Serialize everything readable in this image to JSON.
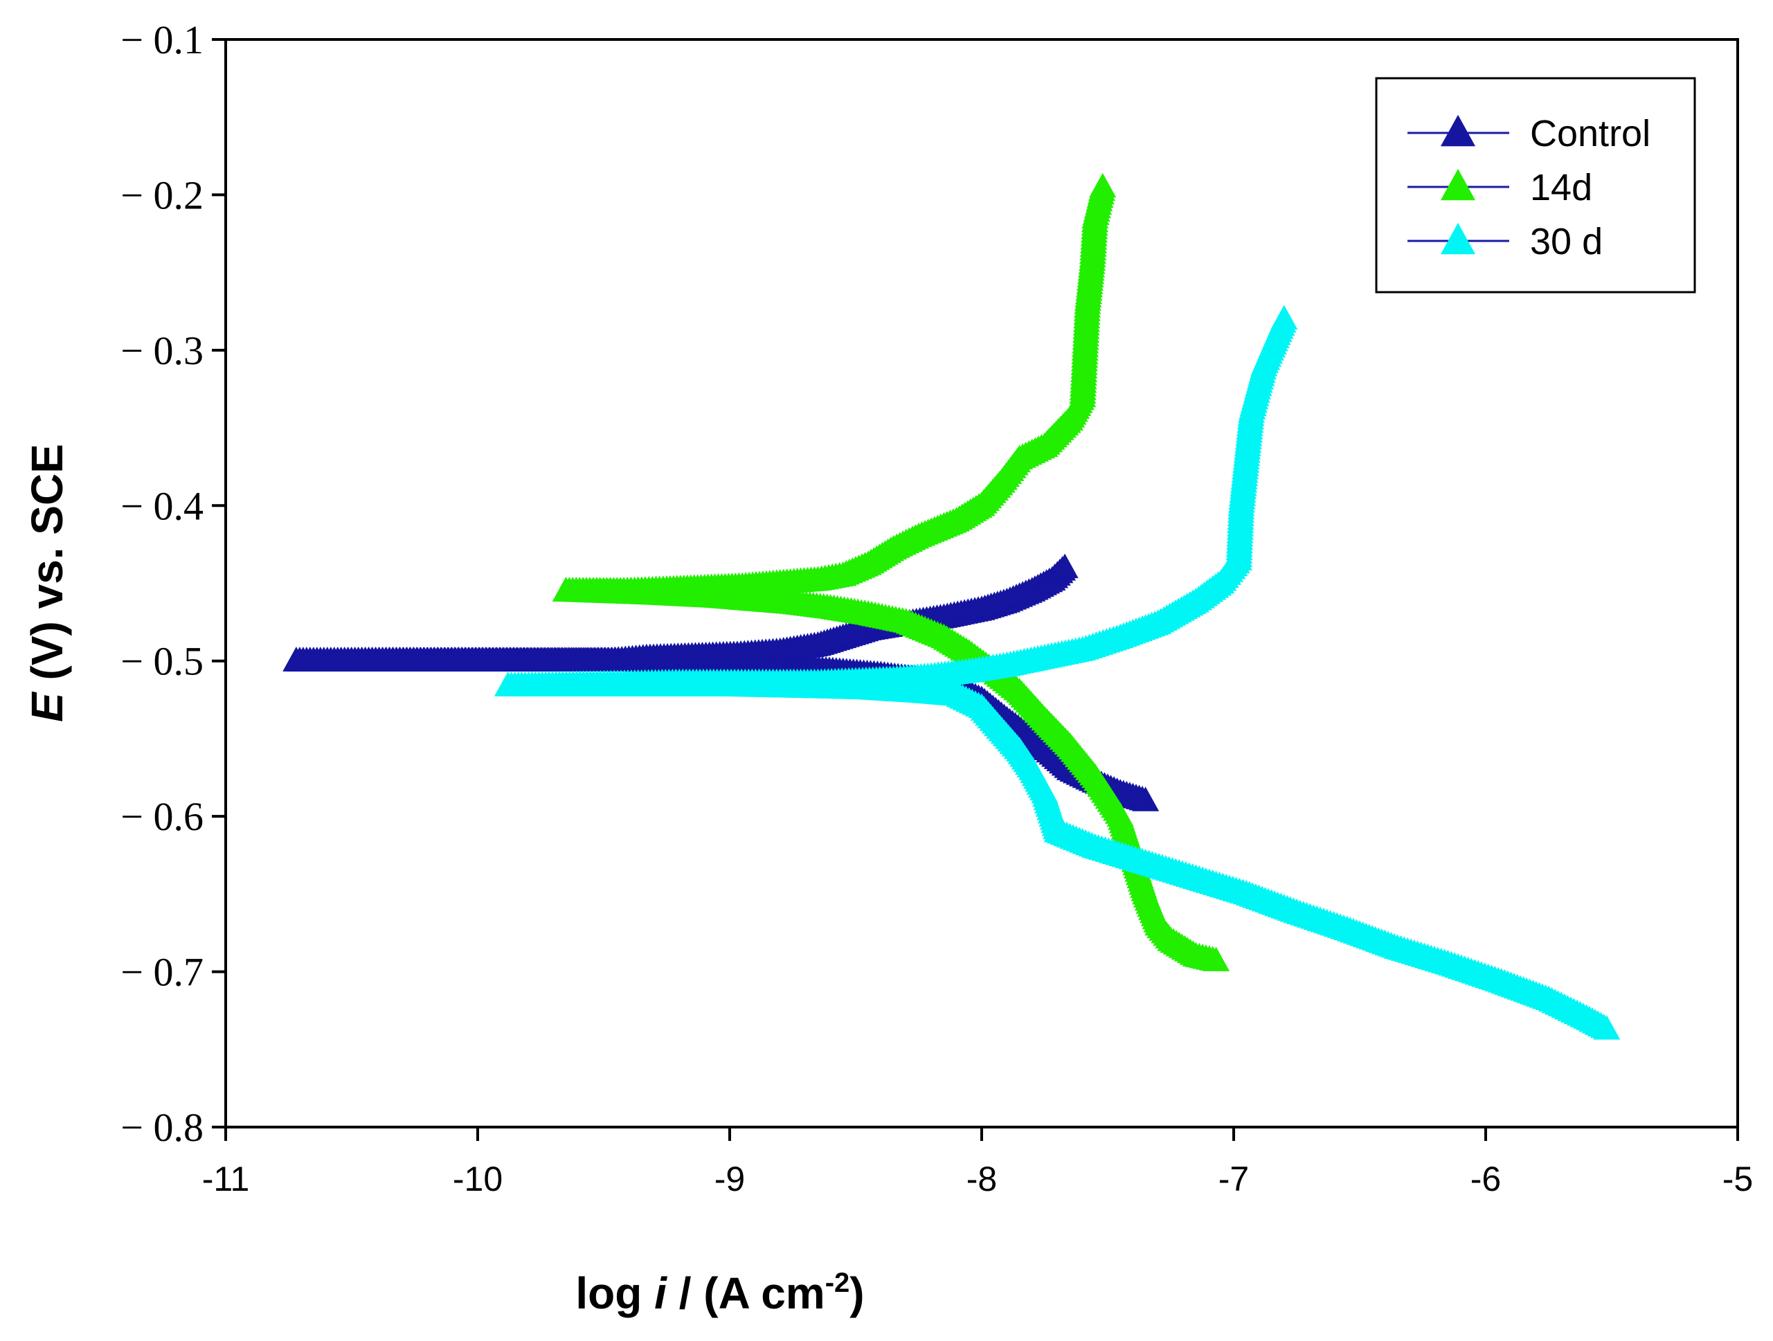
{
  "chart_data": {
    "type": "line",
    "xlabel_parts": {
      "prefix": "log ",
      "var": "i",
      "mid": " / (A cm",
      "sup": "-2",
      "suffix": ")"
    },
    "ylabel_parts": {
      "var": "E",
      "rest": " (V) vs. SCE"
    },
    "xlim": [
      -11,
      -5
    ],
    "ylim": [
      -0.8,
      -0.1
    ],
    "x_ticks": [
      {
        "value": -11,
        "label": "-11"
      },
      {
        "value": -10,
        "label": "-10"
      },
      {
        "value": -9,
        "label": "-9"
      },
      {
        "value": -8,
        "label": "-8"
      },
      {
        "value": -7,
        "label": "-7"
      },
      {
        "value": -6,
        "label": "-6"
      },
      {
        "value": -5,
        "label": "-5"
      }
    ],
    "y_ticks": [
      {
        "value": -0.1,
        "label": "− 0.1"
      },
      {
        "value": -0.2,
        "label": "− 0.2"
      },
      {
        "value": -0.3,
        "label": "− 0.3"
      },
      {
        "value": -0.4,
        "label": "− 0.4"
      },
      {
        "value": -0.5,
        "label": "− 0.5"
      },
      {
        "value": -0.6,
        "label": "− 0.6"
      },
      {
        "value": -0.7,
        "label": "− 0.7"
      },
      {
        "value": -0.8,
        "label": "− 0.8"
      }
    ],
    "legend_position": "top-right",
    "line_color": "#1a1aa8",
    "series": [
      {
        "name": "Control",
        "marker_color": "#1515a0",
        "cathodic": [
          [
            -7.35,
            -0.59
          ],
          [
            -7.45,
            -0.585
          ],
          [
            -7.55,
            -0.578
          ],
          [
            -7.65,
            -0.57
          ],
          [
            -7.72,
            -0.56
          ],
          [
            -7.8,
            -0.55
          ],
          [
            -7.9,
            -0.538
          ],
          [
            -8.0,
            -0.525
          ],
          [
            -8.1,
            -0.518
          ],
          [
            -8.25,
            -0.512
          ],
          [
            -8.4,
            -0.509
          ],
          [
            -8.55,
            -0.507
          ],
          [
            -8.7,
            -0.505
          ],
          [
            -8.85,
            -0.503
          ],
          [
            -9.0,
            -0.502
          ],
          [
            -9.2,
            -0.501
          ],
          [
            -9.4,
            -0.5
          ],
          [
            -9.6,
            -0.5
          ],
          [
            -10.72,
            -0.5
          ]
        ],
        "anodic": [
          [
            -10.72,
            -0.5
          ],
          [
            -9.47,
            -0.5
          ],
          [
            -9.33,
            -0.498
          ],
          [
            -9.15,
            -0.497
          ],
          [
            -8.97,
            -0.496
          ],
          [
            -8.8,
            -0.494
          ],
          [
            -8.65,
            -0.49
          ],
          [
            -8.55,
            -0.485
          ],
          [
            -8.45,
            -0.48
          ],
          [
            -8.3,
            -0.476
          ],
          [
            -8.15,
            -0.472
          ],
          [
            -8.0,
            -0.467
          ],
          [
            -7.9,
            -0.462
          ],
          [
            -7.8,
            -0.455
          ],
          [
            -7.72,
            -0.448
          ],
          [
            -7.67,
            -0.44
          ]
        ]
      },
      {
        "name": "14d",
        "marker_color": "#22ee00",
        "cathodic": [
          [
            -7.07,
            -0.693
          ],
          [
            -7.15,
            -0.69
          ],
          [
            -7.25,
            -0.68
          ],
          [
            -7.3,
            -0.67
          ],
          [
            -7.35,
            -0.65
          ],
          [
            -7.4,
            -0.625
          ],
          [
            -7.45,
            -0.6
          ],
          [
            -7.55,
            -0.575
          ],
          [
            -7.65,
            -0.555
          ],
          [
            -7.75,
            -0.538
          ],
          [
            -7.85,
            -0.52
          ],
          [
            -7.95,
            -0.507
          ],
          [
            -8.05,
            -0.495
          ],
          [
            -8.15,
            -0.485
          ],
          [
            -8.3,
            -0.475
          ],
          [
            -8.45,
            -0.47
          ],
          [
            -8.6,
            -0.466
          ],
          [
            -8.75,
            -0.463
          ],
          [
            -8.9,
            -0.461
          ],
          [
            -9.05,
            -0.459
          ],
          [
            -9.3,
            -0.457
          ],
          [
            -9.65,
            -0.455
          ]
        ],
        "anodic": [
          [
            -9.65,
            -0.455
          ],
          [
            -9.42,
            -0.455
          ],
          [
            -9.25,
            -0.454
          ],
          [
            -9.1,
            -0.453
          ],
          [
            -8.95,
            -0.452
          ],
          [
            -8.8,
            -0.45
          ],
          [
            -8.65,
            -0.448
          ],
          [
            -8.55,
            -0.445
          ],
          [
            -8.45,
            -0.438
          ],
          [
            -8.35,
            -0.428
          ],
          [
            -8.25,
            -0.42
          ],
          [
            -8.1,
            -0.41
          ],
          [
            -8.0,
            -0.4
          ],
          [
            -7.92,
            -0.385
          ],
          [
            -7.85,
            -0.37
          ],
          [
            -7.75,
            -0.362
          ],
          [
            -7.65,
            -0.345
          ],
          [
            -7.6,
            -0.33
          ],
          [
            -7.59,
            -0.3
          ],
          [
            -7.58,
            -0.27
          ],
          [
            -7.56,
            -0.24
          ],
          [
            -7.55,
            -0.215
          ],
          [
            -7.52,
            -0.195
          ]
        ]
      },
      {
        "name": "30 d",
        "marker_color": "#00f5f5",
        "cathodic": [
          [
            -5.52,
            -0.737
          ],
          [
            -5.6,
            -0.73
          ],
          [
            -5.75,
            -0.718
          ],
          [
            -5.95,
            -0.706
          ],
          [
            -6.15,
            -0.695
          ],
          [
            -6.35,
            -0.685
          ],
          [
            -6.55,
            -0.673
          ],
          [
            -6.75,
            -0.662
          ],
          [
            -6.95,
            -0.65
          ],
          [
            -7.15,
            -0.64
          ],
          [
            -7.35,
            -0.63
          ],
          [
            -7.55,
            -0.62
          ],
          [
            -7.7,
            -0.61
          ],
          [
            -7.72,
            -0.6
          ],
          [
            -7.75,
            -0.585
          ],
          [
            -7.8,
            -0.57
          ],
          [
            -7.85,
            -0.558
          ],
          [
            -7.92,
            -0.545
          ],
          [
            -8.0,
            -0.53
          ],
          [
            -8.1,
            -0.522
          ],
          [
            -8.25,
            -0.52
          ],
          [
            -8.45,
            -0.518
          ],
          [
            -8.7,
            -0.517
          ],
          [
            -9.0,
            -0.516
          ],
          [
            -9.4,
            -0.516
          ],
          [
            -9.88,
            -0.516
          ]
        ],
        "anodic": [
          [
            -9.88,
            -0.516
          ],
          [
            -9.2,
            -0.514
          ],
          [
            -9.05,
            -0.514
          ],
          [
            -8.8,
            -0.514
          ],
          [
            -8.65,
            -0.514
          ],
          [
            -8.5,
            -0.513
          ],
          [
            -8.35,
            -0.512
          ],
          [
            -8.2,
            -0.51
          ],
          [
            -8.05,
            -0.507
          ],
          [
            -7.9,
            -0.503
          ],
          [
            -7.75,
            -0.498
          ],
          [
            -7.6,
            -0.493
          ],
          [
            -7.45,
            -0.485
          ],
          [
            -7.3,
            -0.476
          ],
          [
            -7.15,
            -0.462
          ],
          [
            -7.05,
            -0.45
          ],
          [
            -6.98,
            -0.435
          ],
          [
            -6.97,
            -0.4
          ],
          [
            -6.95,
            -0.37
          ],
          [
            -6.93,
            -0.34
          ],
          [
            -6.88,
            -0.31
          ],
          [
            -6.8,
            -0.28
          ]
        ]
      }
    ]
  }
}
